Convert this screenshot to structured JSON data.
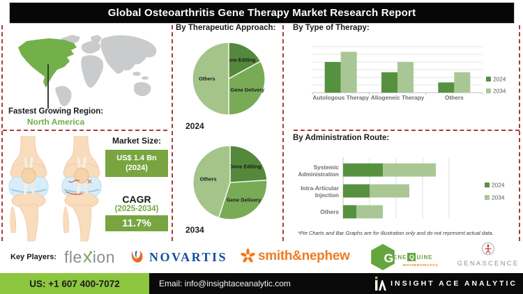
{
  "title": "Global Osteoarthritis Gene Therapy Market Research Report",
  "map": {
    "label": "Fastest Growing Region:",
    "region": "North America"
  },
  "market": {
    "size_label": "Market Size:",
    "size_value": "US$ 1.4 Bn",
    "size_year": "(2024)",
    "cagr_label": "CAGR",
    "cagr_period": "(2025-2034)",
    "cagr_value": "11.7%"
  },
  "chart_data": [
    {
      "type": "pie",
      "title": "By Therapeutic Approach:",
      "year_label": "2024",
      "slices": [
        {
          "label": "Gene Editing",
          "value": 17,
          "color": "#54883b"
        },
        {
          "label": "Gene Delivery",
          "value": 33,
          "color": "#79ab57"
        },
        {
          "label": "Others",
          "value": 50,
          "color": "#a4c489"
        }
      ]
    },
    {
      "type": "pie",
      "title": "By Therapeutic Approach:",
      "year_label": "2034",
      "slices": [
        {
          "label": "Gene Editing",
          "value": 24,
          "color": "#54883b"
        },
        {
          "label": "Gene Delivery",
          "value": 31,
          "color": "#79ab57"
        },
        {
          "label": "Others",
          "value": 45,
          "color": "#a4c489"
        }
      ]
    },
    {
      "type": "bar",
      "title": "By Type of Therapy:",
      "categories": [
        "Autologous Therapy",
        "Allogeneic Therapy",
        "Others"
      ],
      "series": [
        {
          "name": "2024",
          "color": "#569140",
          "values": [
            3,
            2,
            1
          ]
        },
        {
          "name": "2034",
          "color": "#a9c795",
          "values": [
            4,
            3,
            2
          ]
        }
      ],
      "ylim": [
        0,
        4.5
      ],
      "grid": true,
      "legend_position": "right"
    },
    {
      "type": "stacked-hbar",
      "title": "By Administration Route:",
      "categories": [
        "Systemic Administration",
        "Intra-Articular Injection",
        "Others"
      ],
      "series": [
        {
          "name": "2024",
          "color": "#569140",
          "values": [
            3,
            2,
            1
          ]
        },
        {
          "name": "2034",
          "color": "#a9c795",
          "values": [
            4,
            3,
            2
          ]
        }
      ],
      "xlim": [
        0,
        8
      ],
      "grid": true,
      "legend_position": "right"
    }
  ],
  "footnote": "*Pie Charts and Bar Graphs are for illustration only and do not represent actual data.",
  "key_players": {
    "label": "Key Players:",
    "flexion": {
      "pre": "fle",
      "post": "ion"
    },
    "novartis": "NOVARTIS",
    "smith_nephew": "smith&nephew",
    "genequine": {
      "hex_letter": "G",
      "ene": "ENE",
      "q": "Q",
      "uine": "UINE",
      "tagline": "BIOTHERAPEUTICS"
    },
    "genascence": "GENASCENCE"
  },
  "footer": {
    "phone": "US: +1 607 400-7072",
    "email": "Email: info@insightaceanalytic.com",
    "brand": "INSIGHT ACE ANALYTIC"
  },
  "colors": {
    "dark_green": "#569140",
    "mid_green": "#79ab57",
    "light_green": "#a9c795",
    "map_green": "#74b04a",
    "accent_box_green": "#78a53f",
    "footer_green": "#8dc63f",
    "dashed_red": "#a83b3b",
    "novartis_blue": "#0e4f9e",
    "smith_nephew_orange": "#ef7c22"
  }
}
